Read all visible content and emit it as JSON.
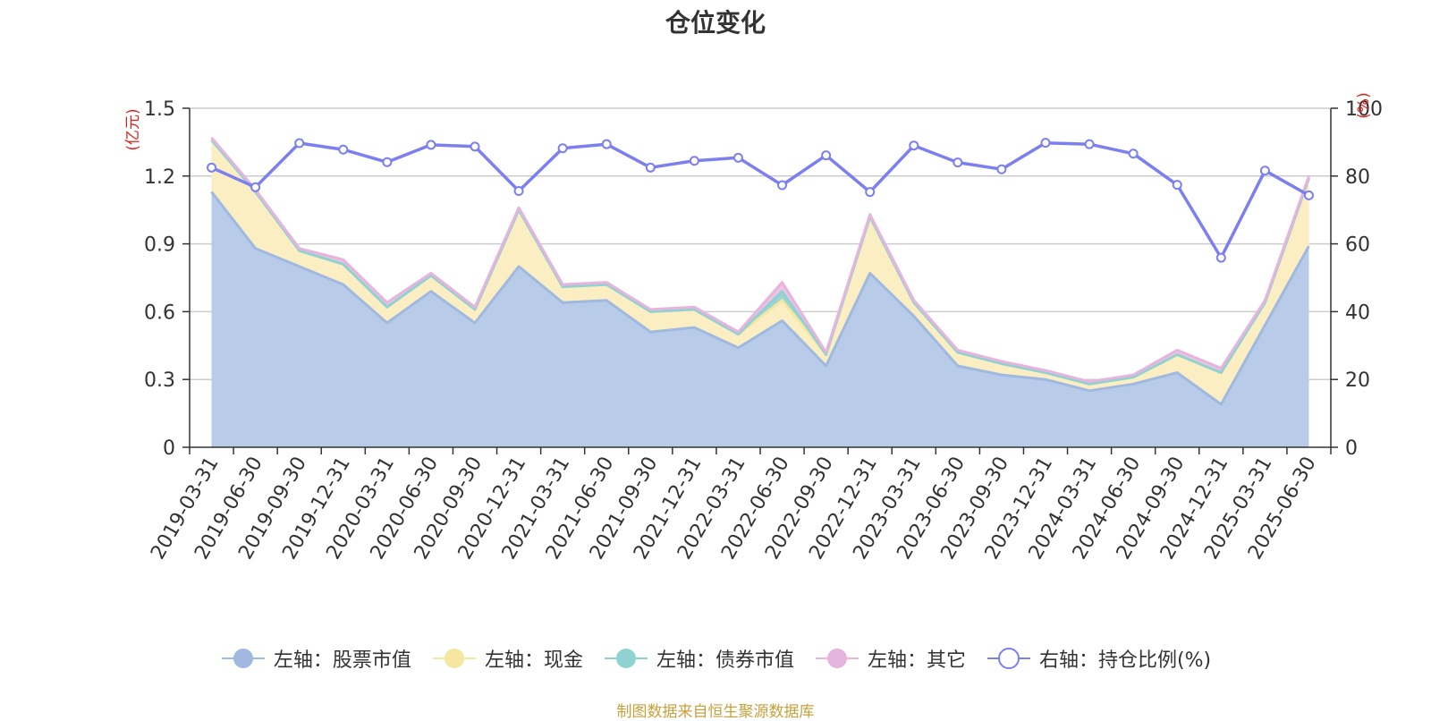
{
  "chart_data": {
    "type": "area",
    "title": "仓位变化",
    "left_axis_unit": "(亿元)",
    "right_axis_unit": "(%)",
    "left_ylim": [
      0,
      1.5
    ],
    "left_ticks": [
      "0",
      "0.3",
      "0.6",
      "0.9",
      "1.2",
      "1.5"
    ],
    "right_ylim": [
      0,
      100
    ],
    "right_ticks": [
      "0",
      "20",
      "40",
      "60",
      "80",
      "100"
    ],
    "grid": true,
    "legend_position": "bottom",
    "x": [
      "2019-03-31",
      "2019-06-30",
      "2019-09-30",
      "2019-12-31",
      "2020-03-31",
      "2020-06-30",
      "2020-09-30",
      "2020-12-31",
      "2021-03-31",
      "2021-06-30",
      "2021-09-30",
      "2021-12-31",
      "2022-03-31",
      "2022-06-30",
      "2022-09-30",
      "2022-12-31",
      "2023-03-31",
      "2023-06-30",
      "2023-09-30",
      "2023-12-31",
      "2024-03-31",
      "2024-06-30",
      "2024-09-30",
      "2024-12-31",
      "2025-03-31",
      "2025-06-30"
    ],
    "series": [
      {
        "name": "左轴：股票市值",
        "axis": "left",
        "stacked": true,
        "color": "#9fb9e0",
        "fill": "#b8cce9",
        "values": [
          1.13,
          0.88,
          0.8,
          0.72,
          0.55,
          0.69,
          0.55,
          0.8,
          0.64,
          0.65,
          0.51,
          0.53,
          0.44,
          0.56,
          0.36,
          0.77,
          0.58,
          0.36,
          0.32,
          0.3,
          0.25,
          0.28,
          0.33,
          0.19,
          0.54,
          0.89
        ]
      },
      {
        "name": "左轴：现金",
        "axis": "left",
        "stacked": true,
        "color": "#f5e6a0",
        "fill": "#faeec2",
        "values": [
          0.23,
          0.25,
          0.07,
          0.09,
          0.07,
          0.07,
          0.06,
          0.25,
          0.07,
          0.07,
          0.09,
          0.08,
          0.06,
          0.09,
          0.05,
          0.25,
          0.06,
          0.06,
          0.05,
          0.03,
          0.03,
          0.03,
          0.08,
          0.14,
          0.1,
          0.3
        ]
      },
      {
        "name": "左轴：债券市值",
        "axis": "left",
        "stacked": true,
        "color": "#90d2d2",
        "fill": "#9bd6d3",
        "values": [
          0,
          0,
          0,
          0,
          0,
          0,
          0,
          0,
          0,
          0,
          0,
          0,
          0,
          0.04,
          0,
          0,
          0,
          0,
          0,
          0,
          0,
          0,
          0,
          0,
          0,
          0
        ]
      },
      {
        "name": "左轴：其它",
        "axis": "left",
        "stacked": true,
        "color": "#e6b4dc",
        "fill": "#ecc4e4",
        "values": [
          0.01,
          0.01,
          0.01,
          0.02,
          0.02,
          0.01,
          0.01,
          0.01,
          0.01,
          0.01,
          0.01,
          0.01,
          0.01,
          0.04,
          0.01,
          0.01,
          0.01,
          0.01,
          0.01,
          0.01,
          0.01,
          0.01,
          0.02,
          0.02,
          0.01,
          0.01
        ]
      },
      {
        "name": "右轴：持仓比例(%)",
        "axis": "right",
        "stacked": false,
        "color": "#7b7ff0",
        "values": [
          82.5,
          76.7,
          89.7,
          87.8,
          84.1,
          89.2,
          88.7,
          75.6,
          88.2,
          89.4,
          82.5,
          84.5,
          85.4,
          77.3,
          86.1,
          75.3,
          89.0,
          84.0,
          82.0,
          89.8,
          89.4,
          86.6,
          77.4,
          55.9,
          81.6,
          74.3
        ]
      }
    ],
    "source_note": "制图数据来自恒生聚源数据库"
  }
}
